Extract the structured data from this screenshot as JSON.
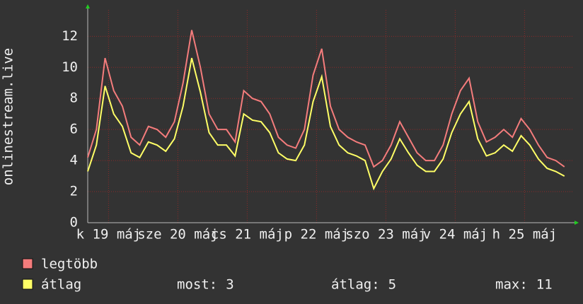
{
  "chart_data": {
    "type": "line",
    "y_label": "onlinestream.live",
    "x": [
      0,
      0.125,
      0.25,
      0.375,
      0.5,
      0.625,
      0.75,
      0.875,
      1,
      1.125,
      1.25,
      1.375,
      1.5,
      1.625,
      1.75,
      1.875,
      2,
      2.125,
      2.25,
      2.375,
      2.5,
      2.625,
      2.75,
      2.875,
      3,
      3.125,
      3.25,
      3.375,
      3.5,
      3.625,
      3.75,
      3.875,
      4,
      4.125,
      4.25,
      4.375,
      4.5,
      4.625,
      4.75,
      4.875,
      5,
      5.125,
      5.25,
      5.375,
      5.5,
      5.625,
      5.75,
      5.875,
      6,
      6.125,
      6.25,
      6.375,
      6.5,
      6.625,
      6.75,
      6.875
    ],
    "series": [
      {
        "name": "legtöbb",
        "color": "#f47c7c",
        "values": [
          4.2,
          6,
          10.6,
          8.5,
          7.5,
          5.5,
          5,
          6.2,
          6,
          5.5,
          6.5,
          9,
          12.4,
          10,
          7,
          6,
          6,
          5.2,
          8.5,
          8,
          7.8,
          7,
          5.5,
          5,
          4.8,
          6,
          9.5,
          11.2,
          7.5,
          6,
          5.5,
          5.2,
          5,
          3.6,
          4,
          5,
          6.5,
          5.5,
          4.5,
          4,
          4,
          5,
          7,
          8.5,
          9.3,
          6.5,
          5.2,
          5.5,
          6,
          5.5,
          6.7,
          6,
          5,
          4.2,
          4,
          3.6
        ]
      },
      {
        "name": "átlag",
        "color": "#ffff66",
        "values": [
          3.3,
          5,
          8.8,
          7,
          6.2,
          4.5,
          4.2,
          5.2,
          5,
          4.6,
          5.4,
          7.5,
          10.6,
          8.4,
          5.8,
          5,
          5,
          4.3,
          7,
          6.6,
          6.5,
          5.8,
          4.5,
          4.1,
          4,
          5,
          7.8,
          9.4,
          6.2,
          5,
          4.5,
          4.3,
          4,
          2.2,
          3.3,
          4.1,
          5.4,
          4.5,
          3.7,
          3.3,
          3.3,
          4.1,
          5.8,
          7,
          7.8,
          5.4,
          4.3,
          4.5,
          5,
          4.6,
          5.6,
          5,
          4.1,
          3.5,
          3.3,
          3
        ]
      }
    ],
    "xlim": [
      0,
      7
    ],
    "xticks": [
      {
        "value": 0.3,
        "label": "k 19 máj"
      },
      {
        "value": 1.3,
        "label": "sze 20 máj"
      },
      {
        "value": 2.3,
        "label": "cs 21 máj"
      },
      {
        "value": 3.3,
        "label": "p 22 máj"
      },
      {
        "value": 4.3,
        "label": "szo 23 máj"
      },
      {
        "value": 5.3,
        "label": "v 24 máj"
      },
      {
        "value": 6.3,
        "label": "h 25 máj"
      }
    ],
    "ylim": [
      0,
      13.7
    ],
    "yticks": [
      0,
      2,
      4,
      6,
      8,
      10,
      12
    ],
    "grid": true,
    "stats": [
      {
        "label": "most:",
        "value": 3
      },
      {
        "label": "átlag:",
        "value": 5
      },
      {
        "label": "max:",
        "value": 11
      }
    ]
  }
}
